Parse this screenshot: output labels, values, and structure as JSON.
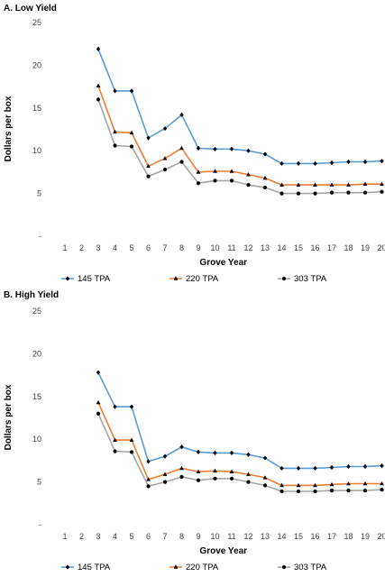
{
  "chart_data": [
    {
      "type": "line",
      "title": "A. Low Yield",
      "xlabel": "Grove Year",
      "ylabel": "Dollars per box",
      "categories": [
        "1",
        "2",
        "3",
        "4",
        "5",
        "6",
        "7",
        "8",
        "9",
        "10",
        "11",
        "12",
        "13",
        "14",
        "15",
        "16",
        "17",
        "18",
        "19",
        "20"
      ],
      "ylim": [
        0,
        25
      ],
      "yticks": [
        "-",
        "5",
        "10",
        "15",
        "20",
        "25"
      ],
      "grid": false,
      "legend_position": "bottom",
      "series": [
        {
          "name": "145 TPA",
          "color": "#5B9BD5",
          "marker": "diamond",
          "values": [
            null,
            null,
            21.9,
            17.0,
            17.0,
            11.5,
            12.6,
            14.2,
            10.3,
            10.2,
            10.2,
            10.0,
            9.6,
            8.5,
            8.5,
            8.5,
            8.6,
            8.7,
            8.7,
            8.8
          ]
        },
        {
          "name": "220 TPA",
          "color": "#ED7D31",
          "marker": "triangle",
          "values": [
            null,
            null,
            17.6,
            12.2,
            12.1,
            8.2,
            9.1,
            10.3,
            7.5,
            7.6,
            7.6,
            7.2,
            6.8,
            6.0,
            6.0,
            6.0,
            6.0,
            6.0,
            6.1,
            6.1
          ]
        },
        {
          "name": "303 TPA",
          "color": "#A5A5A5",
          "marker": "circle",
          "values": [
            null,
            null,
            16.0,
            10.6,
            10.5,
            7.0,
            7.8,
            8.7,
            6.2,
            6.5,
            6.5,
            6.0,
            5.7,
            5.0,
            5.0,
            5.0,
            5.1,
            5.1,
            5.1,
            5.2
          ]
        }
      ]
    },
    {
      "type": "line",
      "title": "B. High Yield",
      "xlabel": "Grove Year",
      "ylabel": "Dollars per box",
      "categories": [
        "1",
        "2",
        "3",
        "4",
        "5",
        "6",
        "7",
        "8",
        "9",
        "10",
        "11",
        "12",
        "13",
        "14",
        "15",
        "16",
        "17",
        "18",
        "19",
        "20"
      ],
      "ylim": [
        0,
        25
      ],
      "yticks": [
        "-",
        "5",
        "10",
        "15",
        "20",
        "25"
      ],
      "grid": false,
      "legend_position": "bottom",
      "series": [
        {
          "name": "145 TPA",
          "color": "#5B9BD5",
          "marker": "diamond",
          "values": [
            null,
            null,
            17.8,
            13.8,
            13.8,
            7.4,
            8.0,
            9.1,
            8.5,
            8.4,
            8.4,
            8.2,
            7.8,
            6.6,
            6.6,
            6.6,
            6.7,
            6.8,
            6.8,
            6.9
          ]
        },
        {
          "name": "220 TPA",
          "color": "#ED7D31",
          "marker": "triangle",
          "values": [
            null,
            null,
            14.3,
            9.9,
            9.9,
            5.3,
            5.9,
            6.6,
            6.2,
            6.3,
            6.2,
            5.9,
            5.5,
            4.6,
            4.6,
            4.6,
            4.7,
            4.8,
            4.8,
            4.8
          ]
        },
        {
          "name": "303 TPA",
          "color": "#A5A5A5",
          "marker": "circle",
          "values": [
            null,
            null,
            13.0,
            8.6,
            8.5,
            4.5,
            5.0,
            5.6,
            5.2,
            5.4,
            5.4,
            5.0,
            4.6,
            3.9,
            3.9,
            3.9,
            4.0,
            4.0,
            4.0,
            4.1
          ]
        }
      ]
    }
  ]
}
